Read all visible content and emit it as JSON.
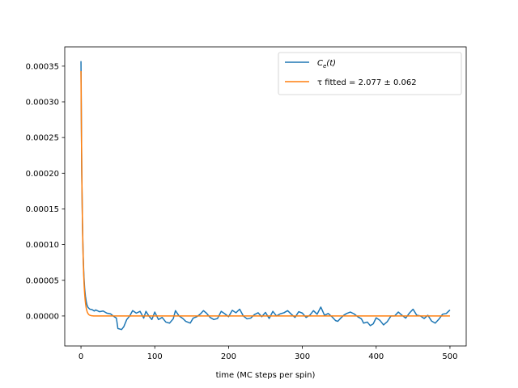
{
  "chart_data": {
    "type": "line",
    "title": "",
    "xlabel": "time (MC steps per spin)",
    "ylabel": "",
    "xlim": [
      -22,
      522
    ],
    "ylim": [
      -4.2e-05,
      0.000377
    ],
    "xticks": [
      0,
      100,
      200,
      300,
      400,
      500
    ],
    "xtick_labels": [
      "0",
      "100",
      "200",
      "300",
      "400",
      "500"
    ],
    "yticks": [
      0.0,
      5e-05,
      0.0001,
      0.00015,
      0.0002,
      0.00025,
      0.0003,
      0.00035
    ],
    "ytick_labels": [
      "0.00000",
      "0.00005",
      "0.00010",
      "0.00015",
      "0.00020",
      "0.00025",
      "0.00030",
      "0.00035"
    ],
    "grid": false,
    "legend_placement": "top-right",
    "series": [
      {
        "name": "Ce(t)",
        "legend_main": "C",
        "legend_sub": "e",
        "legend_suffix": "(t)",
        "color": "#1f77b4",
        "points": [
          [
            0,
            0.000357
          ],
          [
            1,
            0.000205
          ],
          [
            2,
            0.00013
          ],
          [
            3,
            8.3e-05
          ],
          [
            4,
            5.5e-05
          ],
          [
            5,
            3.8e-05
          ],
          [
            6,
            2.8e-05
          ],
          [
            7,
            2.1e-05
          ],
          [
            8,
            1.6e-05
          ],
          [
            9,
            1.3e-05
          ],
          [
            10,
            1.15e-05
          ],
          [
            12,
            9.5e-06
          ],
          [
            15,
            9e-06
          ],
          [
            18,
            7e-06
          ],
          [
            20,
            8.5e-06
          ],
          [
            25,
            6e-06
          ],
          [
            30,
            7e-06
          ],
          [
            35,
            4e-06
          ],
          [
            40,
            3e-06
          ],
          [
            45,
            -1e-06
          ],
          [
            48,
            -3e-06
          ],
          [
            50,
            -1.75e-05
          ],
          [
            55,
            -1.9e-05
          ],
          [
            58,
            -1.5e-05
          ],
          [
            62,
            -5e-06
          ],
          [
            66,
            0.0
          ],
          [
            70,
            7.5e-06
          ],
          [
            75,
            4e-06
          ],
          [
            80,
            6.5e-06
          ],
          [
            85,
            -3e-06
          ],
          [
            88,
            6.5e-06
          ],
          [
            92,
            0.0
          ],
          [
            96,
            -5e-06
          ],
          [
            100,
            5.5e-06
          ],
          [
            105,
            -5e-06
          ],
          [
            110,
            -2e-06
          ],
          [
            115,
            -8.5e-06
          ],
          [
            120,
            -1e-05
          ],
          [
            125,
            -4e-06
          ],
          [
            128,
            7.5e-06
          ],
          [
            133,
            0.0
          ],
          [
            138,
            -3.5e-06
          ],
          [
            142,
            -7.5e-06
          ],
          [
            148,
            -1e-05
          ],
          [
            152,
            -3e-06
          ],
          [
            157,
            -1e-06
          ],
          [
            162,
            3e-06
          ],
          [
            166,
            7.5e-06
          ],
          [
            170,
            4e-06
          ],
          [
            175,
            -2e-06
          ],
          [
            180,
            -5e-06
          ],
          [
            185,
            -3.5e-06
          ],
          [
            190,
            6.5e-06
          ],
          [
            195,
            3e-06
          ],
          [
            200,
            -1e-06
          ],
          [
            205,
            8e-06
          ],
          [
            210,
            4.5e-06
          ],
          [
            215,
            9.5e-06
          ],
          [
            220,
            0.0
          ],
          [
            225,
            -4e-06
          ],
          [
            230,
            -3e-06
          ],
          [
            235,
            2e-06
          ],
          [
            240,
            4.5e-06
          ],
          [
            245,
            -1e-06
          ],
          [
            250,
            5e-06
          ],
          [
            255,
            -3.5e-06
          ],
          [
            260,
            6.5e-06
          ],
          [
            265,
            0.0
          ],
          [
            270,
            3e-06
          ],
          [
            275,
            4.5e-06
          ],
          [
            280,
            7.5e-06
          ],
          [
            285,
            2.5e-06
          ],
          [
            290,
            -2e-06
          ],
          [
            295,
            6e-06
          ],
          [
            300,
            4e-06
          ],
          [
            305,
            -2e-06
          ],
          [
            310,
            1e-06
          ],
          [
            315,
            7.5e-06
          ],
          [
            320,
            2.5e-06
          ],
          [
            325,
            1.25e-05
          ],
          [
            330,
            1e-06
          ],
          [
            335,
            3.5e-06
          ],
          [
            340,
            -1e-06
          ],
          [
            345,
            -6.5e-06
          ],
          [
            348,
            -7.5e-06
          ],
          [
            352,
            -3e-06
          ],
          [
            356,
            1e-06
          ],
          [
            360,
            3.5e-06
          ],
          [
            365,
            5.5e-06
          ],
          [
            370,
            3e-06
          ],
          [
            375,
            -1e-06
          ],
          [
            380,
            -4e-06
          ],
          [
            383,
            -1e-05
          ],
          [
            388,
            -8.5e-06
          ],
          [
            392,
            -1.35e-05
          ],
          [
            396,
            -1.1e-05
          ],
          [
            400,
            -2.5e-06
          ],
          [
            405,
            -6e-06
          ],
          [
            410,
            -1.25e-05
          ],
          [
            415,
            -8e-06
          ],
          [
            420,
            0.0
          ],
          [
            425,
            0.0
          ],
          [
            430,
            5.5e-06
          ],
          [
            435,
            1e-06
          ],
          [
            440,
            -3e-06
          ],
          [
            445,
            4e-06
          ],
          [
            450,
            9.5e-06
          ],
          [
            455,
            1e-06
          ],
          [
            460,
            0.0
          ],
          [
            465,
            -3.5e-06
          ],
          [
            470,
            1e-06
          ],
          [
            475,
            -7e-06
          ],
          [
            480,
            -1e-05
          ],
          [
            485,
            -4.5e-06
          ],
          [
            490,
            2.5e-06
          ],
          [
            495,
            3.5e-06
          ],
          [
            500,
            8.5e-06
          ]
        ]
      },
      {
        "name": "τ fitted = 2.077 ± 0.062",
        "color": "#ff7f0e",
        "model": "exponential_decay",
        "amplitude": 0.000343,
        "tau": 2.077,
        "tau_error": 0.062,
        "x_range": [
          0,
          500
        ]
      }
    ]
  }
}
